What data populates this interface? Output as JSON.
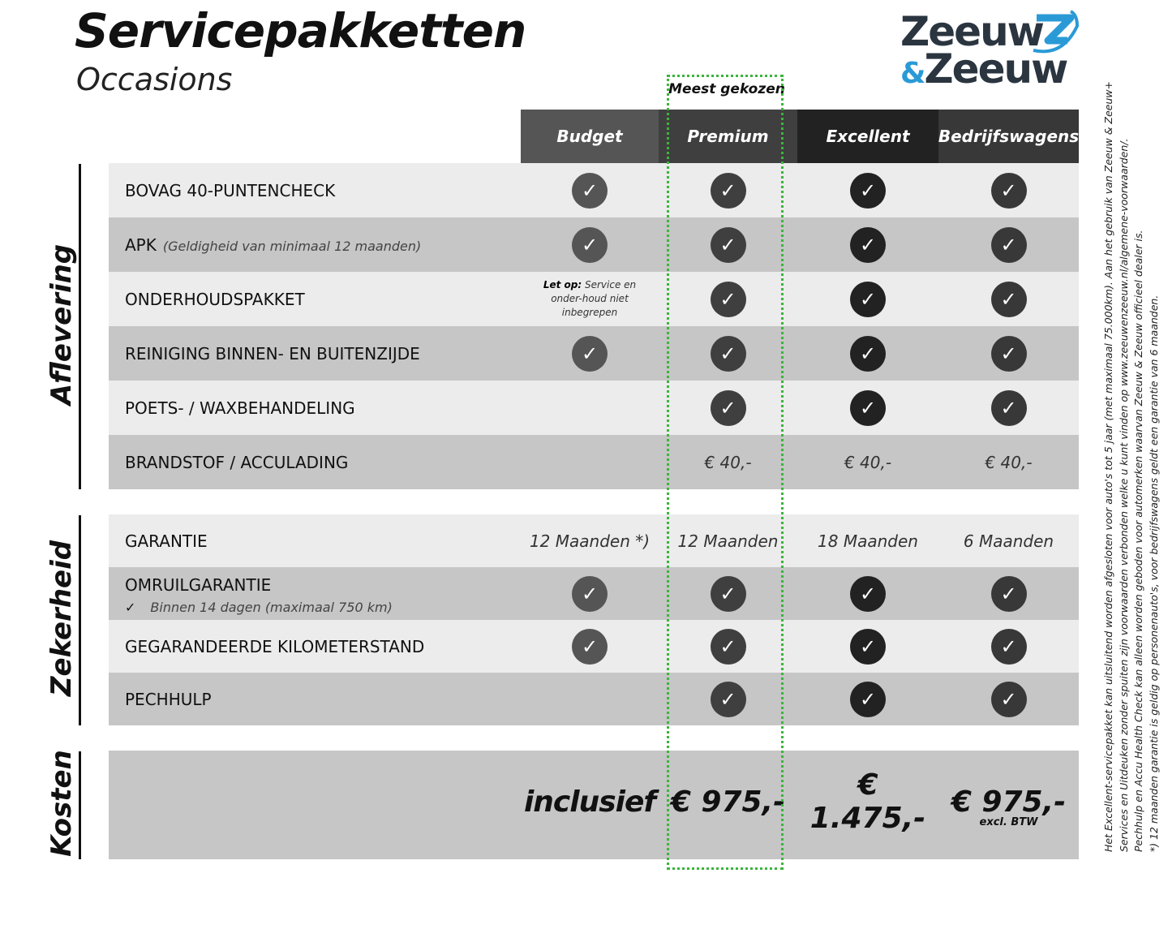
{
  "header": {
    "title": "Servicepakketten",
    "subtitle": "Occasions",
    "logo_text": [
      "Zeeuw",
      "&",
      "Zeeuw"
    ],
    "most_chosen": "Meest gekozen"
  },
  "colors": {
    "highlight_frame": "#3cb43c",
    "logo_blue": "#2a9ad6",
    "logo_dark": "#2a3540",
    "row_light": "#ececec",
    "row_dark": "#c6c6c6"
  },
  "columns": [
    {
      "label": "Budget",
      "color": "#555555"
    },
    {
      "label": "Premium",
      "color": "#3f3f3f"
    },
    {
      "label": "Excellent",
      "color": "#222222"
    },
    {
      "label": "Bedrijfswagens",
      "color": "#383838"
    }
  ],
  "sections": [
    {
      "label": "Aflevering",
      "rows": [
        {
          "label": "BOVAG 40-PUNTENCHECK",
          "cells": [
            "check",
            "check",
            "check",
            "check"
          ]
        },
        {
          "label": "APK",
          "sub": "(Geldigheid van minimaal 12 maanden)",
          "cells": [
            "check",
            "check",
            "check",
            "check"
          ]
        },
        {
          "label": "ONDERHOUDSPAKKET",
          "cells": [
            {
              "note_bold": "Let op:",
              "note": "Service en onder-houd niet inbegrepen"
            },
            "check",
            "check",
            "check"
          ]
        },
        {
          "label": "REINIGING BINNEN- EN BUITENZIJDE",
          "cells": [
            "check",
            "check",
            "check",
            "check"
          ]
        },
        {
          "label": "POETS- / WAXBEHANDELING",
          "cells": [
            "",
            "check",
            "check",
            "check"
          ]
        },
        {
          "label": "BRANDSTOF / ACCULADING",
          "cells": [
            "",
            "€ 40,-",
            "€ 40,-",
            "€ 40,-"
          ]
        }
      ]
    },
    {
      "label": "Zekerheid",
      "rows": [
        {
          "label": "GARANTIE",
          "cells": [
            "12 Maanden *)",
            "12 Maanden",
            "18 Maanden",
            "6 Maanden"
          ]
        },
        {
          "label": "OMRUILGARANTIE",
          "sub_check": "✓",
          "sub2": "Binnen 14 dagen (maximaal 750 km)",
          "cells": [
            "check",
            "check",
            "check",
            "check"
          ]
        },
        {
          "label": "GEGARANDEERDE KILOMETERSTAND",
          "cells": [
            "check",
            "check",
            "check",
            "check"
          ]
        },
        {
          "label": "PECHHULP",
          "cells": [
            "",
            "check",
            "check",
            "check"
          ]
        }
      ]
    },
    {
      "label": "Kosten",
      "prices": [
        "inclusief",
        "€ 975,-",
        "€ 1.475,-",
        "€ 975,-"
      ],
      "price_note": "excl. BTW"
    }
  ],
  "footnotes": [
    "Het Excellent-servicepakket kan uitsluitend worden afgesloten voor auto's tot 5 jaar (met maximaal 75.000km). Aan het gebruik van Zeeuw & Zeeuw+",
    "Services en Uitdeuken zonder spuiten zijn voorwaarden verbonden welke u kunt vinden op www.zeeuwenzeeuw.nl/algemene-voorwaarden/.",
    "Pechhulp en Accu Health Check kan alleen worden geboden voor automerken waarvan Zeeuw & Zeeuw officieel dealer is.",
    "*) 12 maanden garantie is geldig op personenauto's, voor bedrijfswagens geldt een garantie van 6 maanden."
  ]
}
